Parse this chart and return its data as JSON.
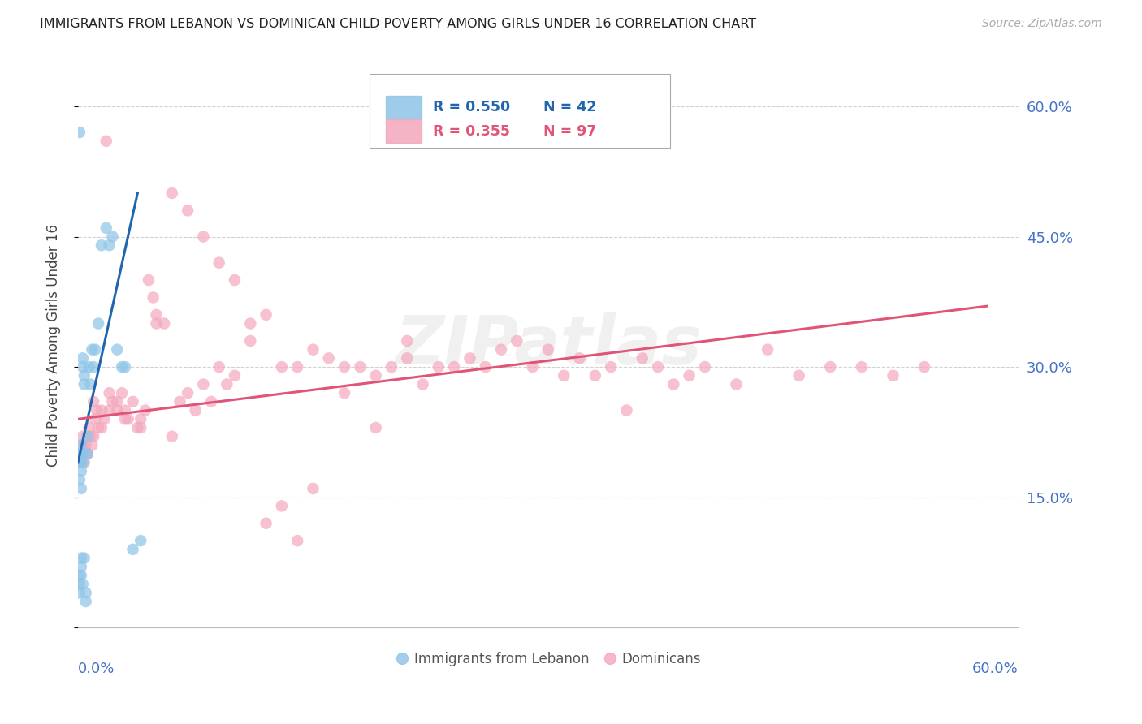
{
  "title": "IMMIGRANTS FROM LEBANON VS DOMINICAN CHILD POVERTY AMONG GIRLS UNDER 16 CORRELATION CHART",
  "source": "Source: ZipAtlas.com",
  "ylabel": "Child Poverty Among Girls Under 16",
  "xmin": 0.0,
  "xmax": 0.6,
  "ymin": 0.0,
  "ymax": 0.65,
  "color_lebanon": "#8ec4e8",
  "color_dominican": "#f4a7bc",
  "color_lebanon_line": "#2166ac",
  "color_dominican_line": "#e05577",
  "color_axis_labels": "#4472c4",
  "color_grid": "#cccccc",
  "background_color": "#ffffff",
  "watermark": "ZIPatlas",
  "lebanon_r": 0.55,
  "lebanon_n": 42,
  "dominican_r": 0.355,
  "dominican_n": 97,
  "leb_x": [
    0.001,
    0.001,
    0.001,
    0.001,
    0.001,
    0.001,
    0.001,
    0.002,
    0.002,
    0.002,
    0.002,
    0.002,
    0.002,
    0.002,
    0.003,
    0.003,
    0.003,
    0.003,
    0.004,
    0.004,
    0.004,
    0.005,
    0.005,
    0.006,
    0.006,
    0.007,
    0.008,
    0.009,
    0.01,
    0.011,
    0.013,
    0.015,
    0.018,
    0.02,
    0.022,
    0.025,
    0.028,
    0.03,
    0.035,
    0.04,
    0.002,
    0.003
  ],
  "leb_y": [
    0.57,
    0.19,
    0.2,
    0.17,
    0.05,
    0.04,
    0.06,
    0.2,
    0.21,
    0.18,
    0.19,
    0.16,
    0.07,
    0.08,
    0.3,
    0.31,
    0.19,
    0.2,
    0.29,
    0.28,
    0.08,
    0.04,
    0.03,
    0.22,
    0.2,
    0.3,
    0.28,
    0.32,
    0.3,
    0.32,
    0.35,
    0.44,
    0.46,
    0.44,
    0.45,
    0.32,
    0.3,
    0.3,
    0.09,
    0.1,
    0.06,
    0.05
  ],
  "dom_x": [
    0.002,
    0.003,
    0.004,
    0.005,
    0.006,
    0.007,
    0.008,
    0.009,
    0.01,
    0.011,
    0.012,
    0.013,
    0.015,
    0.017,
    0.018,
    0.02,
    0.022,
    0.025,
    0.028,
    0.03,
    0.032,
    0.035,
    0.038,
    0.04,
    0.043,
    0.045,
    0.048,
    0.05,
    0.055,
    0.06,
    0.065,
    0.07,
    0.075,
    0.08,
    0.085,
    0.09,
    0.095,
    0.1,
    0.11,
    0.12,
    0.13,
    0.14,
    0.15,
    0.16,
    0.17,
    0.18,
    0.19,
    0.2,
    0.21,
    0.22,
    0.23,
    0.24,
    0.25,
    0.26,
    0.27,
    0.28,
    0.29,
    0.3,
    0.31,
    0.32,
    0.33,
    0.34,
    0.35,
    0.36,
    0.37,
    0.38,
    0.39,
    0.4,
    0.42,
    0.44,
    0.46,
    0.48,
    0.5,
    0.52,
    0.54,
    0.003,
    0.006,
    0.01,
    0.015,
    0.02,
    0.025,
    0.03,
    0.04,
    0.05,
    0.06,
    0.07,
    0.08,
    0.09,
    0.1,
    0.11,
    0.12,
    0.13,
    0.14,
    0.15,
    0.17,
    0.19,
    0.21
  ],
  "dom_y": [
    0.2,
    0.22,
    0.19,
    0.21,
    0.2,
    0.23,
    0.22,
    0.21,
    0.26,
    0.24,
    0.25,
    0.23,
    0.25,
    0.24,
    0.56,
    0.27,
    0.26,
    0.25,
    0.27,
    0.25,
    0.24,
    0.26,
    0.23,
    0.24,
    0.25,
    0.4,
    0.38,
    0.36,
    0.35,
    0.22,
    0.26,
    0.27,
    0.25,
    0.28,
    0.26,
    0.3,
    0.28,
    0.29,
    0.35,
    0.36,
    0.3,
    0.3,
    0.32,
    0.31,
    0.3,
    0.3,
    0.29,
    0.3,
    0.31,
    0.28,
    0.3,
    0.3,
    0.31,
    0.3,
    0.32,
    0.33,
    0.3,
    0.32,
    0.29,
    0.31,
    0.29,
    0.3,
    0.25,
    0.31,
    0.3,
    0.28,
    0.29,
    0.3,
    0.28,
    0.32,
    0.29,
    0.3,
    0.3,
    0.29,
    0.3,
    0.21,
    0.2,
    0.22,
    0.23,
    0.25,
    0.26,
    0.24,
    0.23,
    0.35,
    0.5,
    0.48,
    0.45,
    0.42,
    0.4,
    0.33,
    0.12,
    0.14,
    0.1,
    0.16,
    0.27,
    0.23,
    0.33
  ],
  "leb_line_x": [
    0.0,
    0.038
  ],
  "leb_line_y": [
    0.19,
    0.5
  ],
  "dom_line_x": [
    0.0,
    0.58
  ],
  "dom_line_y": [
    0.24,
    0.37
  ]
}
